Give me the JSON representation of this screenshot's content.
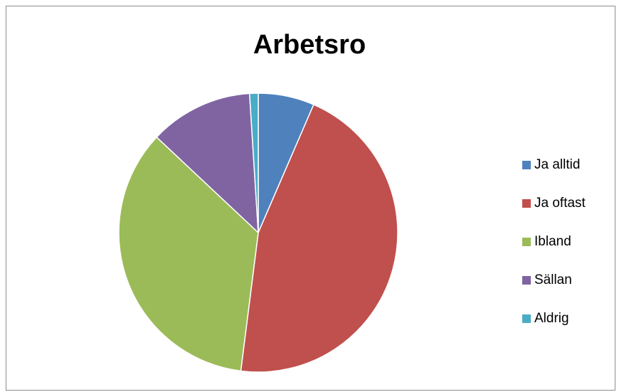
{
  "chart_data": {
    "type": "pie",
    "title": "Arbetsro",
    "categories": [
      "Ja alltid",
      "Ja oftast",
      "Ibland",
      "Sällan",
      "Aldrig"
    ],
    "values": [
      6.5,
      45.5,
      35,
      12,
      1
    ],
    "colors": [
      "#4f81bd",
      "#c0504d",
      "#9bbb59",
      "#8064a2",
      "#4bacc6"
    ],
    "start_angle_deg": 0,
    "direction": "clockwise",
    "legend_position": "right"
  }
}
